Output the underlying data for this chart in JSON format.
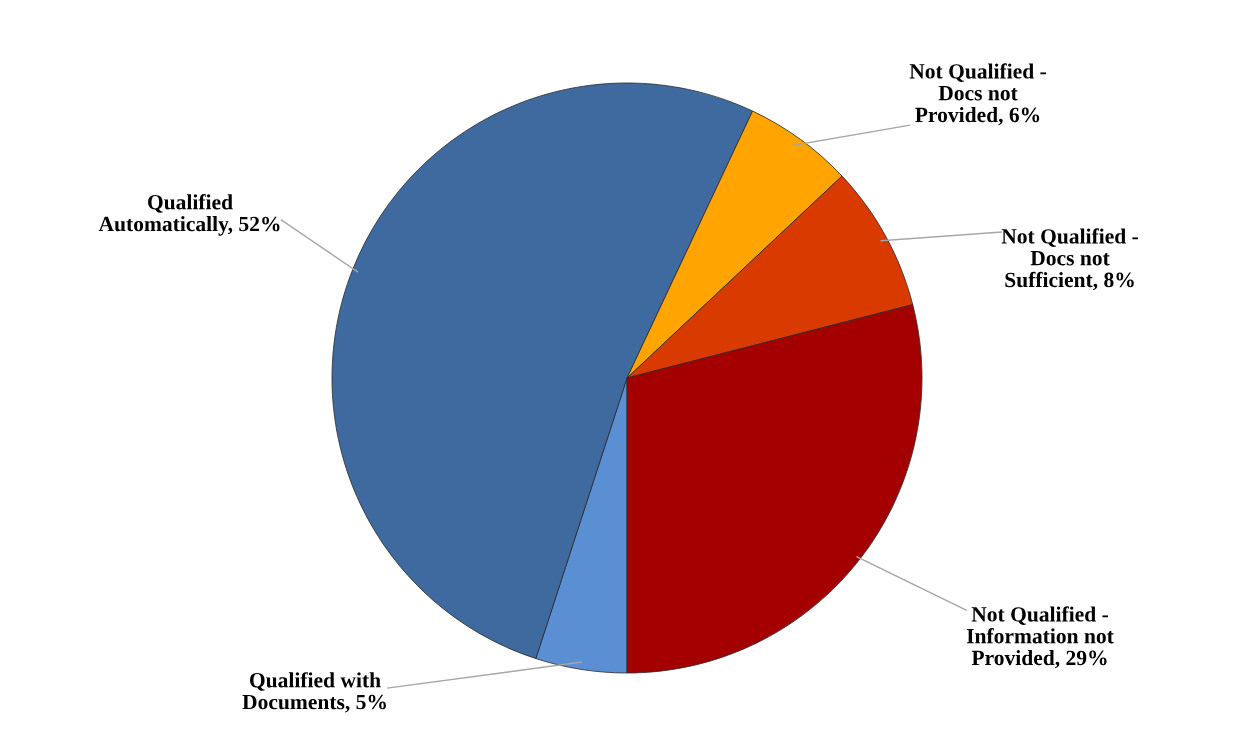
{
  "chart_data": {
    "type": "pie",
    "categories": [
      "Qualified with\nDocuments",
      "Qualified\nAutomatically",
      "Not Qualified -\nDocs not\nProvided",
      "Not Qualified -\nDocs not\nSufficient",
      "Not Qualified -\nInformation not\nProvided"
    ],
    "values": [
      5,
      52,
      6,
      8,
      29
    ],
    "colors": [
      "#5b8fd4",
      "#3e6aa0",
      "#ffa400",
      "#d83a00",
      "#a50000"
    ],
    "value_labels": [
      ", 5%",
      ", 52%",
      ", 6%",
      ", 8%",
      ", 29%"
    ]
  }
}
